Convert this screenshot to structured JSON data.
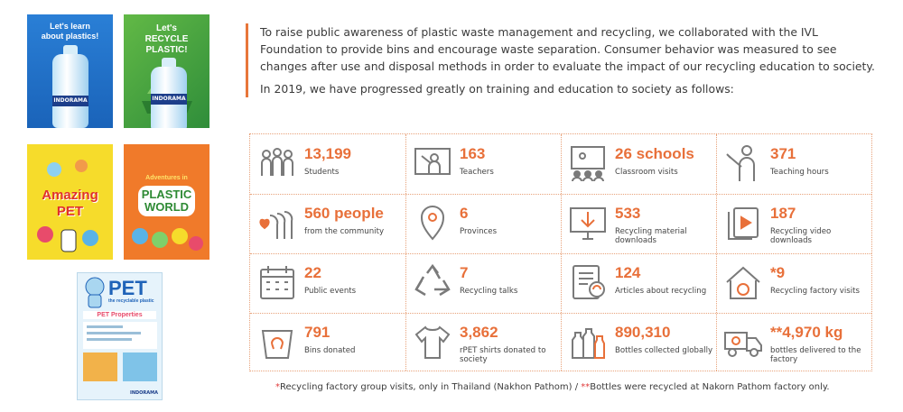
{
  "covers": {
    "learn": {
      "title": "Let's learn about plastics!",
      "bottle_label": "INDORAMA"
    },
    "recycle": {
      "title": "Let's RECYCLE PLASTIC!",
      "bottle_label": "INDORAMA"
    },
    "amazing": {
      "title": "Amazing PET"
    },
    "adventures": {
      "subtitle": "Adventures in",
      "title": "PLASTIC WORLD"
    },
    "pet": {
      "title": "PET",
      "subtitle": "the recyclable plastic",
      "section": "PET Properties",
      "brand": "INDORAMA"
    }
  },
  "intro": {
    "paragraph1": "To raise public awareness of plastic waste management and recycling, we collaborated with the IVL Foundation to provide bins and encourage waste separation. Consumer behavior was measured to see changes after use and disposal methods in order to evaluate the impact of our recycling education to society.",
    "paragraph2": "In 2019, we have progressed greatly on training and education to society as follows:"
  },
  "stats": [
    {
      "value": "13,199",
      "label": "Students",
      "icon": "students-icon"
    },
    {
      "value": "163",
      "label": "Teachers",
      "icon": "teacher-board-icon"
    },
    {
      "value": "26 schools",
      "label": "Classroom visits",
      "icon": "classroom-icon"
    },
    {
      "value": "371",
      "label": "Teaching hours",
      "icon": "teaching-icon"
    },
    {
      "value": "560 people",
      "label": "from the community",
      "icon": "community-icon"
    },
    {
      "value": "6",
      "label": "Provinces",
      "icon": "location-pin-icon"
    },
    {
      "value": "533",
      "label": "Recycling material downloads",
      "icon": "download-monitor-icon"
    },
    {
      "value": "187",
      "label": "Recycling video downloads",
      "icon": "video-download-icon"
    },
    {
      "value": "22",
      "label": "Public events",
      "icon": "calendar-icon"
    },
    {
      "value": "7",
      "label": "Recycling talks",
      "icon": "recycle-icon"
    },
    {
      "value": "124",
      "label": "Articles about recycling",
      "icon": "articles-recycle-icon"
    },
    {
      "value": "*9",
      "label": "Recycling factory visits",
      "icon": "factory-recycle-icon"
    },
    {
      "value": "791",
      "label": "Bins donated",
      "icon": "bin-icon"
    },
    {
      "value": "3,862",
      "label": "rPET shirts donated to society",
      "icon": "shirt-icon"
    },
    {
      "value": "890,310",
      "label": "Bottles collected globally",
      "icon": "bottles-icon"
    },
    {
      "value": "**4,970 kg",
      "label": "bottles delivered to the factory",
      "icon": "truck-icon"
    }
  ],
  "footnote": {
    "star1": "*",
    "text1": "Recycling factory group visits, only in Thailand (Nakhon Pathom) / ",
    "star2": "**",
    "text2": "Bottles were recycled at Nakorn Pathom factory only."
  },
  "colors": {
    "accent": "#e8703a",
    "icon": "#7a7a7a",
    "text": "#3b3b3b"
  }
}
